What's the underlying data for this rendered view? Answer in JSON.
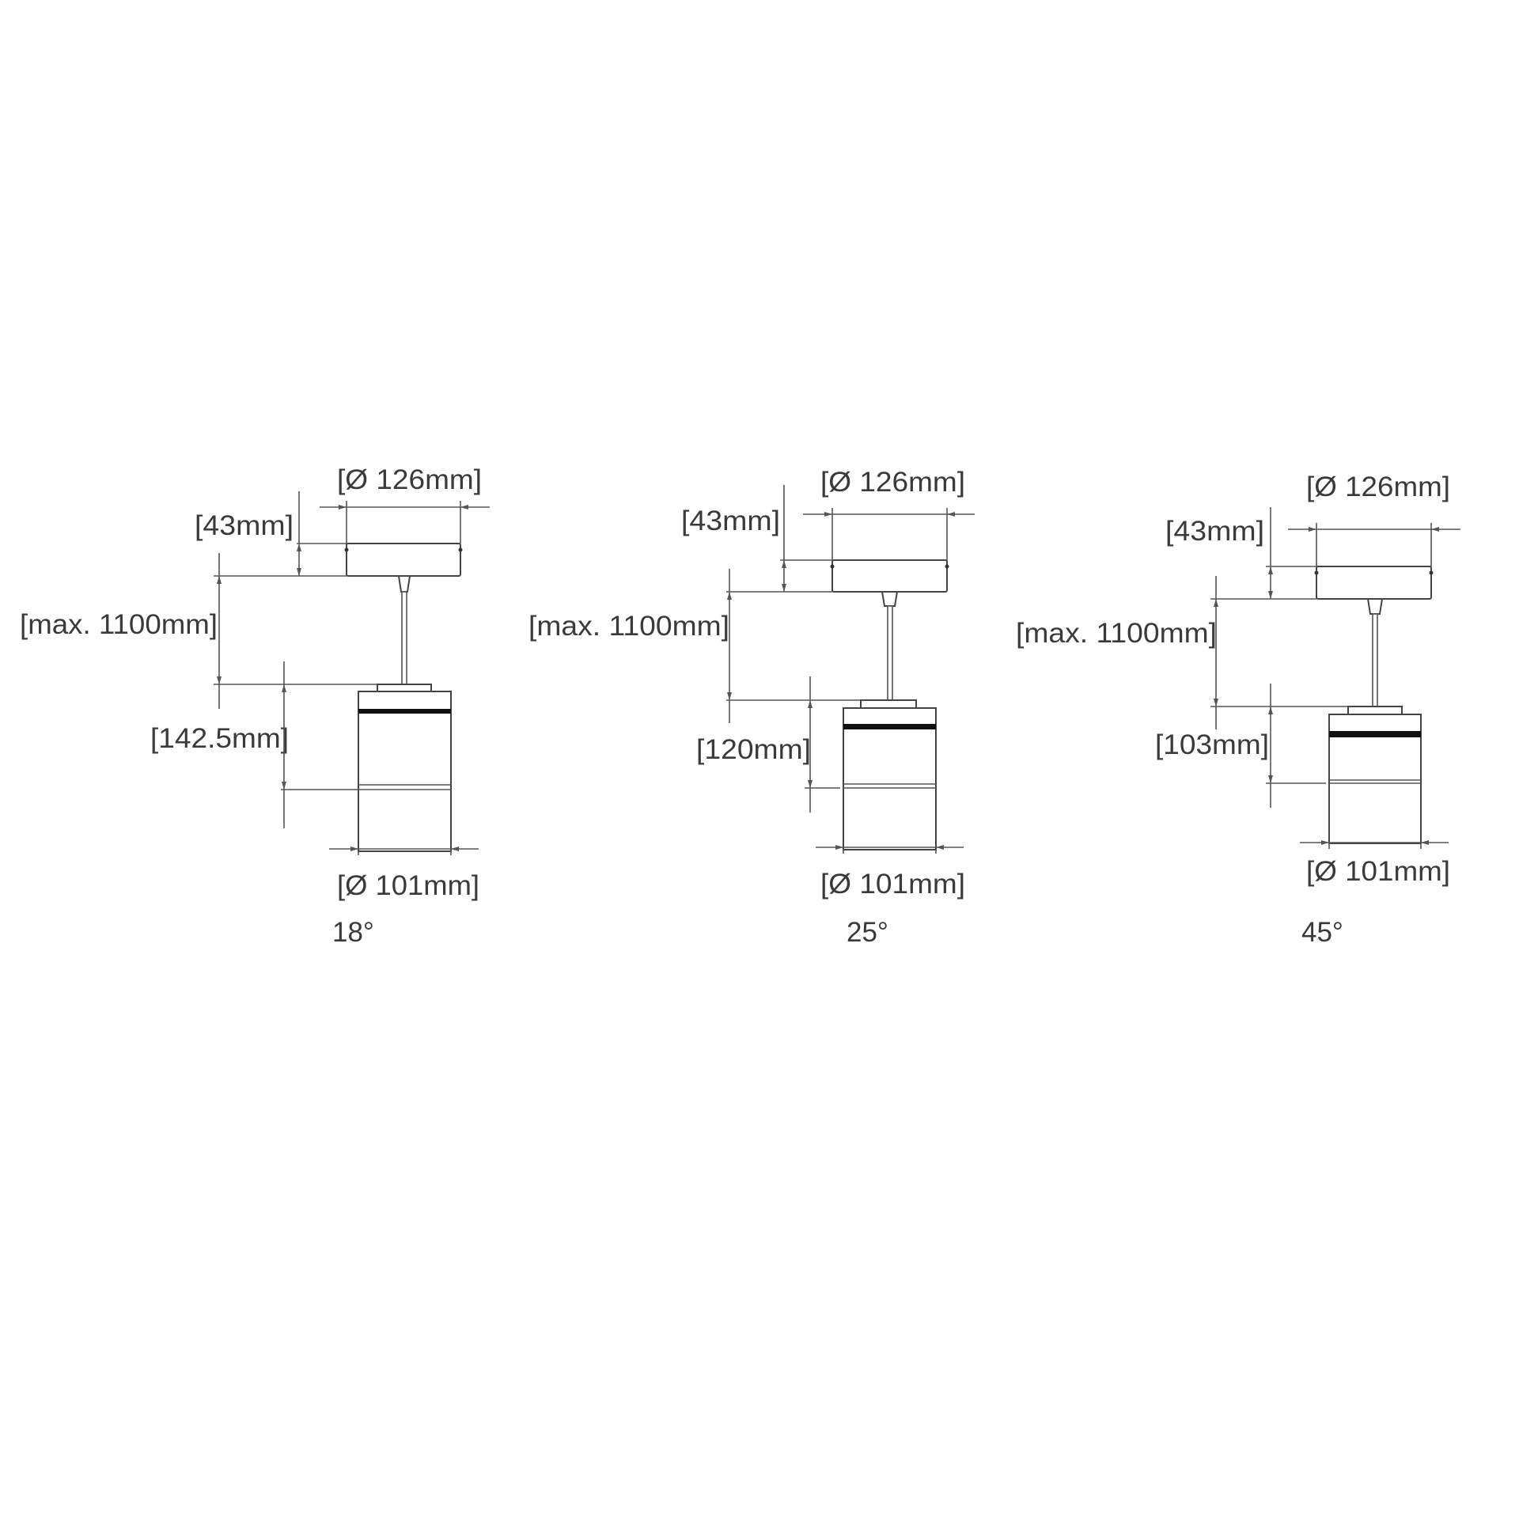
{
  "drawings": [
    {
      "beam_angle": "18°",
      "canopy_diameter": "[Ø 126mm]",
      "canopy_height": "[43mm]",
      "cable_length": "[max. 1100mm]",
      "body_height": "[142.5mm]",
      "body_diameter": "[Ø 101mm]"
    },
    {
      "beam_angle": "25°",
      "canopy_diameter": "[Ø 126mm]",
      "canopy_height": "[43mm]",
      "cable_length": "[max. 1100mm]",
      "body_height": "[120mm]",
      "body_diameter": "[Ø 101mm]"
    },
    {
      "beam_angle": "45°",
      "canopy_diameter": "[Ø 126mm]",
      "canopy_height": "[43mm]",
      "cable_length": "[max. 1100mm]",
      "body_height": "[103mm]",
      "body_diameter": "[Ø 101mm]"
    }
  ],
  "colors": {
    "line": "#555555",
    "text": "#3a3a3a",
    "band": "#111111"
  }
}
